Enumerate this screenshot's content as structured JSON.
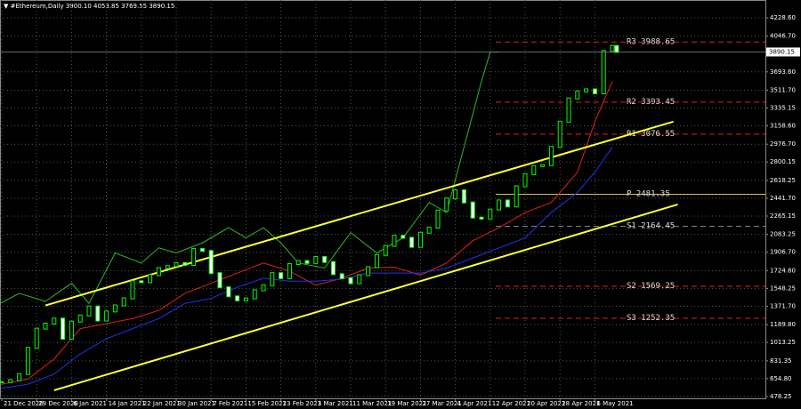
{
  "chart_data": {
    "type": "candlestick",
    "header": "▼ #Ethereum,Daily  3900.10 4053.85 3769.55 3890.15",
    "current_price": {
      "value": 3890.15,
      "label": "3890.15"
    },
    "ylim": [
      460,
      4405
    ],
    "xlim": [
      -0.41,
      175.1
    ],
    "yticks": [
      478.25,
      {
        "value": 654.8,
        "label": "654.80"
      },
      831.35,
      1013.25,
      {
        "value": 1189.8,
        "label": "1189.80"
      },
      {
        "value": 1371.7,
        "label": "1371.70"
      },
      1548.25,
      {
        "value": 1724.8,
        "label": "1724.80"
      },
      {
        "value": 1906.7,
        "label": "1906.70"
      },
      2083.25,
      2265.15,
      {
        "value": 2441.7,
        "label": "2441.70"
      },
      2618.25,
      2800.15,
      {
        "value": 2976.7,
        "label": "2976.70"
      },
      {
        "value": 3158.6,
        "label": "3158.60"
      },
      3335.15,
      {
        "value": 3511.7,
        "label": "3511.70"
      },
      {
        "value": 3693.6,
        "label": "3693.60"
      },
      {
        "value": 4046.7,
        "label": "4046.70"
      },
      {
        "value": 4228.6,
        "label": "4228.60"
      }
    ],
    "xticks": [
      {
        "value": 0,
        "label": "21 Dec 2020"
      },
      {
        "value": 8,
        "label": "29 Dec 2020"
      },
      {
        "value": 16,
        "label": "6 Jan 2021"
      },
      {
        "value": 24,
        "label": "14 Jan 2021"
      },
      {
        "value": 32,
        "label": "22 Jan 2021"
      },
      {
        "value": 40,
        "label": "30 Jan 2021"
      },
      {
        "value": 48,
        "label": "7 Feb 2021"
      },
      {
        "value": 56,
        "label": "15 Feb 2021"
      },
      {
        "value": 64,
        "label": "23 Feb 2021"
      },
      {
        "value": 72,
        "label": "3 Mar 2021"
      },
      {
        "value": 80,
        "label": "11 Mar 2021"
      },
      {
        "value": 88,
        "label": "19 Mar 2021"
      },
      {
        "value": 96,
        "label": "27 Mar 2021"
      },
      {
        "value": 104,
        "label": "4 Apr 2021"
      },
      {
        "value": 112,
        "label": "12 Apr 2021"
      },
      {
        "value": 120,
        "label": "20 Apr 2021"
      },
      {
        "value": 128,
        "label": "28 Apr 2021"
      },
      {
        "value": 136,
        "label": "6 May 2021"
      }
    ],
    "grid": true,
    "x": [
      0,
      2,
      4,
      6,
      8,
      10,
      12,
      14,
      16,
      18,
      20,
      22,
      24,
      26,
      28,
      30,
      32,
      34,
      36,
      38,
      40,
      42,
      44,
      46,
      48,
      50,
      52,
      54,
      56,
      58,
      60,
      62,
      64,
      66,
      68,
      70,
      72,
      74,
      76,
      78,
      80,
      82,
      84,
      86,
      88,
      90,
      92,
      94,
      96,
      98,
      100,
      102,
      104,
      106,
      108,
      110,
      112,
      114,
      116,
      118,
      120,
      122,
      124,
      126,
      128,
      130,
      132,
      134,
      136,
      138,
      140,
      141
    ],
    "close": [
      620,
      640,
      700,
      960,
      1150,
      1200,
      1250,
      1050,
      1220,
      1280,
      1370,
      1230,
      1320,
      1380,
      1450,
      1620,
      1610,
      1680,
      1750,
      1770,
      1800,
      1780,
      1940,
      1920,
      1700,
      1560,
      1470,
      1430,
      1450,
      1530,
      1580,
      1700,
      1650,
      1790,
      1820,
      1800,
      1860,
      1810,
      1690,
      1650,
      1600,
      1680,
      1760,
      1880,
      1970,
      2070,
      2050,
      1960,
      2100,
      2150,
      2320,
      2440,
      2520,
      2400,
      2250,
      2240,
      2330,
      2420,
      2360,
      2560,
      2680,
      2760,
      2770,
      2950,
      3200,
      3430,
      3500,
      3520,
      3480,
      3900,
      3950,
      3890
    ],
    "up_color": "#00ff00",
    "down_color": "#00ff00",
    "lines": [
      {
        "color": "#2db82d",
        "x": [
          -0.4,
          4,
          10,
          16,
          20,
          26,
          32,
          36,
          40,
          46,
          52,
          56,
          60,
          64,
          68,
          74,
          80,
          86,
          92,
          98,
          102,
          106,
          110,
          112,
          114
        ],
        "values": [
          1400,
          1500,
          1420,
          1600,
          1400,
          1900,
          1800,
          1950,
          1900,
          2000,
          2150,
          2050,
          2150,
          2000,
          1800,
          1750,
          2100,
          1900,
          2050,
          2400,
          2300,
          2950,
          3600,
          3890,
          3890
        ]
      },
      {
        "color": "#e0201a",
        "x": [
          0,
          6,
          12,
          18,
          24,
          30,
          36,
          42,
          48,
          54,
          60,
          66,
          72,
          78,
          84,
          90,
          96,
          102,
          108,
          114,
          120,
          126,
          132,
          136,
          140
        ],
        "values": [
          600,
          650,
          850,
          1150,
          1200,
          1250,
          1330,
          1500,
          1600,
          1700,
          1800,
          1720,
          1580,
          1650,
          1750,
          1760,
          1680,
          1800,
          2020,
          2150,
          2300,
          2400,
          2700,
          3200,
          3600
        ]
      },
      {
        "color": "#2233ee",
        "x": [
          0,
          6,
          12,
          18,
          24,
          30,
          36,
          42,
          48,
          54,
          60,
          66,
          72,
          78,
          84,
          90,
          96,
          102,
          108,
          114,
          120,
          126,
          132,
          136,
          140
        ],
        "values": [
          560,
          600,
          700,
          900,
          1050,
          1150,
          1250,
          1400,
          1450,
          1560,
          1650,
          1620,
          1620,
          1640,
          1700,
          1700,
          1700,
          1750,
          1850,
          1950,
          2050,
          2300,
          2500,
          2700,
          2950
        ]
      },
      {
        "color": "#ffff33",
        "x": [
          10,
          154
        ],
        "values": [
          1380,
          3200
        ]
      },
      {
        "color": "#ffff33",
        "x": [
          12,
          155
        ],
        "values": [
          540,
          2380
        ]
      }
    ],
    "levels": [
      {
        "label": "R3",
        "value": 3988.65,
        "color": "#e0201a"
      },
      {
        "label": "R2",
        "value": 3393.45,
        "color": "#e0201a"
      },
      {
        "label": "R1",
        "value": 3076.55,
        "color": "#e0201a"
      },
      {
        "label": "P",
        "value": 2481.35,
        "color": "#d8c060"
      },
      {
        "label": "S1",
        "value": 2164.45,
        "color": "#808080"
      },
      {
        "label": "S2",
        "value": 1569.25,
        "color": "#e0201a"
      },
      {
        "label": "S3",
        "value": 1252.35,
        "color": "#e0201a"
      }
    ]
  }
}
